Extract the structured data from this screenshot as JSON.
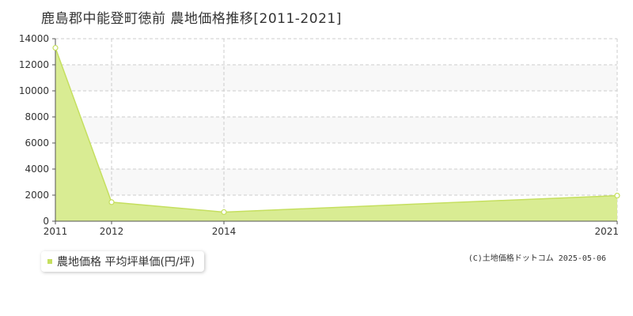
{
  "title": "鹿島郡中能登町徳前 農地価格推移[2011-2021]",
  "legend": {
    "label": "農地価格 平均坪単価(円/坪)"
  },
  "copyright": "(C)土地価格ドットコム 2025-05-06",
  "colors": {
    "fill": "#d9ec93",
    "line": "#c5df5f",
    "grid": "#cccccc",
    "plot_bg": "#f8f8f8",
    "axis": "#555555"
  },
  "chart_data": {
    "type": "area",
    "x": [
      "2011",
      "2012",
      "2014",
      "2021"
    ],
    "series": [
      {
        "values": [
          13300,
          1460,
          700,
          1960
        ]
      }
    ],
    "yticks": [
      0,
      2000,
      4000,
      6000,
      8000,
      10000,
      12000,
      14000
    ],
    "ylim": [
      0,
      14000
    ],
    "grid": true
  }
}
